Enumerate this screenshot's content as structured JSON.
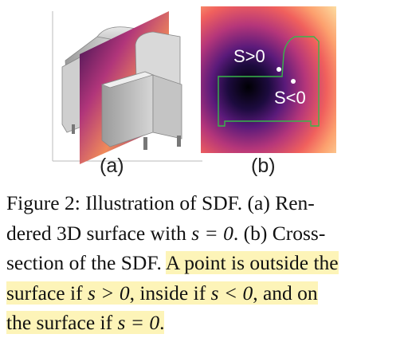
{
  "figure": {
    "panel_a": {
      "label": "(a)"
    },
    "panel_b": {
      "label": "(b)",
      "annotation_outside": "S>0",
      "annotation_inside": "S<0"
    }
  },
  "caption": {
    "line1": "Figure 2:  Illustration of SDF.  (a)  Ren-",
    "line2_pre": "dered 3D surface with ",
    "line2_math": "s = 0",
    "line2_post": ".  (b)  Cross-",
    "line3_plain": "section of the SDF. ",
    "line3_hl": "A point is outside the",
    "line4_a": "surface if ",
    "line4_m1": "s > 0",
    "line4_b": ", inside if ",
    "line4_m2": "s < 0",
    "line4_c": ", and on",
    "line5_a": "the surface if ",
    "line5_m": "s = 0",
    "line5_b": "."
  },
  "colors": {
    "highlight": "#fdf4b8",
    "contour": "#39b54a"
  }
}
